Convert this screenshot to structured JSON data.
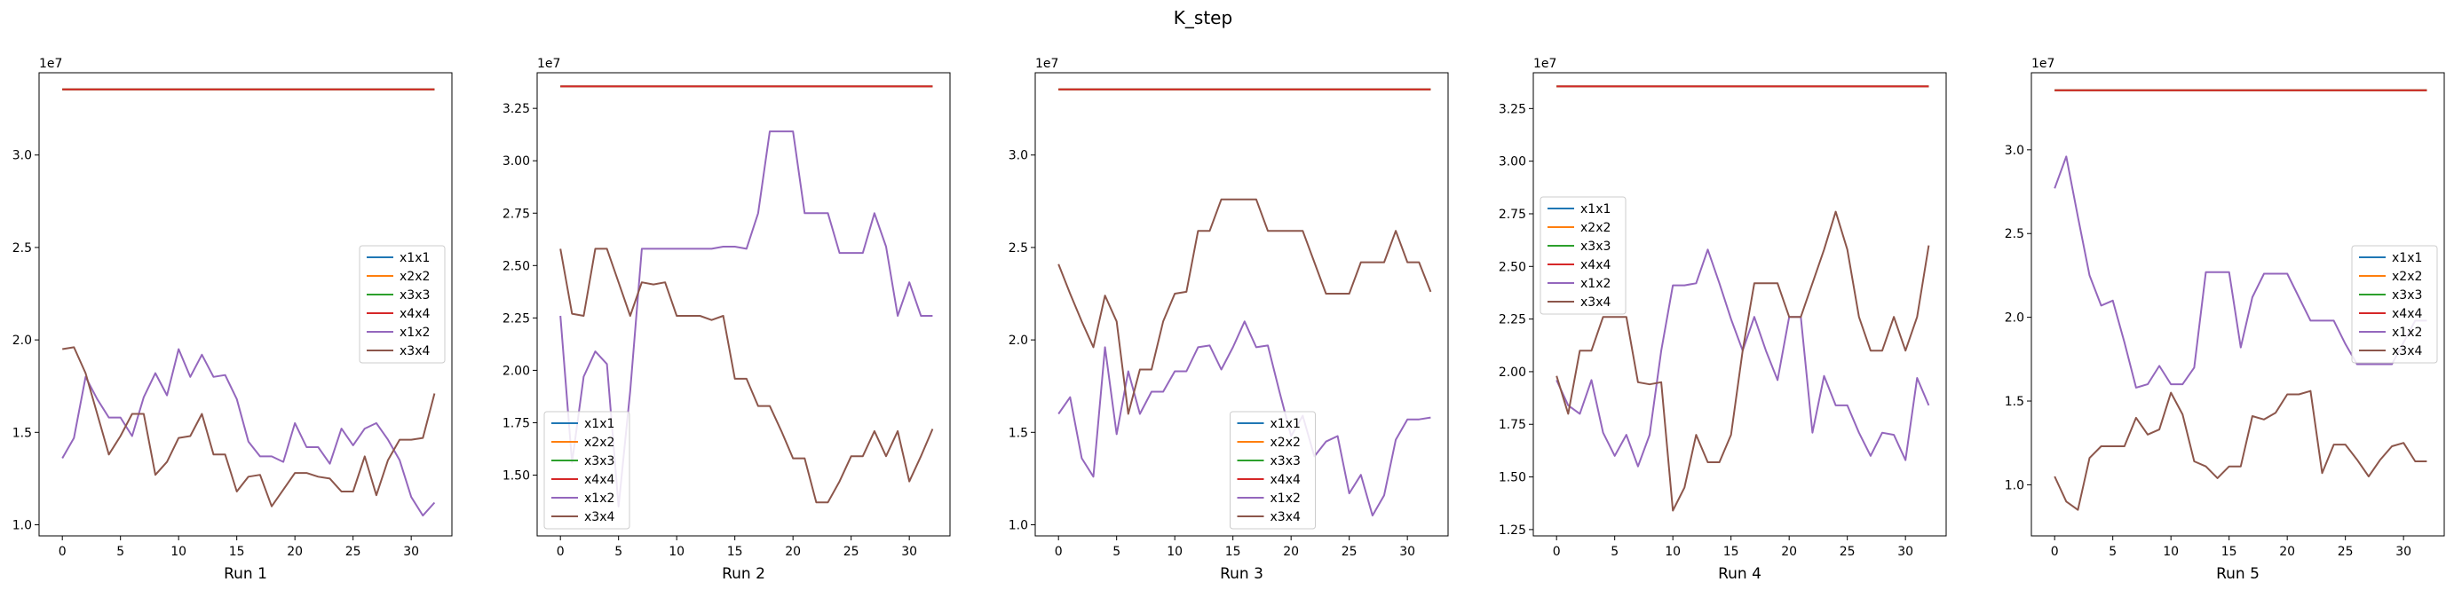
{
  "figure": {
    "suptitle": "K_step"
  },
  "chart_data": [
    {
      "type": "line",
      "xlabel": "Run 1",
      "exponent_label": "1e7",
      "xlim": [
        -2,
        33.5
      ],
      "ylim": [
        0.94,
        3.445
      ],
      "xticks": [
        0,
        5,
        10,
        15,
        20,
        25,
        30
      ],
      "yticks": [
        1.0,
        1.5,
        2.0,
        2.5,
        3.0
      ],
      "ytick_labels": [
        "1.0",
        "1.5",
        "2.0",
        "2.5",
        "3.0"
      ],
      "legend_position": "center-right",
      "series": [
        {
          "name": "x1x1",
          "color": "#1f77b4",
          "constant": 3.355,
          "x_range": [
            0,
            32
          ]
        },
        {
          "name": "x2x2",
          "color": "#ff7f0e",
          "constant": 3.355,
          "x_range": [
            0,
            32
          ]
        },
        {
          "name": "x3x3",
          "color": "#2ca02c",
          "constant": 3.355,
          "x_range": [
            0,
            32
          ]
        },
        {
          "name": "x4x4",
          "color": "#d62728",
          "constant": 3.355,
          "x_range": [
            0,
            32
          ]
        },
        {
          "name": "x1x2",
          "color": "#9467bd",
          "values": [
            1.36,
            1.47,
            1.8,
            1.68,
            1.58,
            1.58,
            1.48,
            1.69,
            1.82,
            1.7,
            1.95,
            1.8,
            1.92,
            1.8,
            1.81,
            1.68,
            1.45,
            1.37,
            1.37,
            1.34,
            1.55,
            1.42,
            1.42,
            1.33,
            1.52,
            1.43,
            1.52,
            1.55,
            1.46,
            1.35,
            1.15,
            1.05,
            1.12
          ]
        },
        {
          "name": "x3x4",
          "color": "#8c564b",
          "values": [
            1.95,
            1.96,
            1.82,
            1.6,
            1.38,
            1.48,
            1.6,
            1.6,
            1.27,
            1.34,
            1.47,
            1.48,
            1.6,
            1.38,
            1.38,
            1.18,
            1.26,
            1.27,
            1.1,
            1.19,
            1.28,
            1.28,
            1.26,
            1.25,
            1.18,
            1.18,
            1.37,
            1.16,
            1.35,
            1.46,
            1.46,
            1.47,
            1.71
          ]
        }
      ]
    },
    {
      "type": "line",
      "xlabel": "Run 2",
      "exponent_label": "1e7",
      "xlim": [
        -2,
        33.5
      ],
      "ylim": [
        1.21,
        3.42
      ],
      "xticks": [
        0,
        5,
        10,
        15,
        20,
        25,
        30
      ],
      "yticks": [
        1.5,
        1.75,
        2.0,
        2.25,
        2.5,
        2.75,
        3.0,
        3.25
      ],
      "ytick_labels": [
        "1.50",
        "1.75",
        "2.00",
        "2.25",
        "2.50",
        "2.75",
        "3.00",
        "3.25"
      ],
      "legend_position": "lower-left",
      "series": [
        {
          "name": "x1x1",
          "color": "#1f77b4",
          "constant": 3.355,
          "x_range": [
            0,
            32
          ]
        },
        {
          "name": "x2x2",
          "color": "#ff7f0e",
          "constant": 3.355,
          "x_range": [
            0,
            32
          ]
        },
        {
          "name": "x3x3",
          "color": "#2ca02c",
          "constant": 3.355,
          "x_range": [
            0,
            32
          ]
        },
        {
          "name": "x4x4",
          "color": "#d62728",
          "constant": 3.355,
          "x_range": [
            0,
            32
          ]
        },
        {
          "name": "x1x2",
          "color": "#9467bd",
          "values": [
            2.26,
            1.56,
            1.97,
            2.09,
            2.03,
            1.35,
            1.9,
            2.58,
            2.58,
            2.58,
            2.58,
            2.58,
            2.58,
            2.58,
            2.59,
            2.59,
            2.58,
            2.75,
            3.14,
            3.14,
            3.14,
            2.75,
            2.75,
            2.75,
            2.56,
            2.56,
            2.56,
            2.75,
            2.59,
            2.26,
            2.42,
            2.26,
            2.26
          ]
        },
        {
          "name": "x3x4",
          "color": "#8c564b",
          "values": [
            2.58,
            2.27,
            2.26,
            2.58,
            2.58,
            2.42,
            2.26,
            2.42,
            2.41,
            2.42,
            2.26,
            2.26,
            2.26,
            2.24,
            2.26,
            1.96,
            1.96,
            1.83,
            1.83,
            1.71,
            1.58,
            1.58,
            1.37,
            1.37,
            1.47,
            1.59,
            1.59,
            1.71,
            1.59,
            1.71,
            1.47,
            1.59,
            1.72
          ]
        }
      ]
    },
    {
      "type": "line",
      "xlabel": "Run 3",
      "exponent_label": "1e7",
      "xlim": [
        -2,
        33.5
      ],
      "ylim": [
        0.94,
        3.445
      ],
      "xticks": [
        0,
        5,
        10,
        15,
        20,
        25,
        30
      ],
      "yticks": [
        1.0,
        1.5,
        2.0,
        2.5,
        3.0
      ],
      "ytick_labels": [
        "1.0",
        "1.5",
        "2.0",
        "2.5",
        "3.0"
      ],
      "legend_position": "lower-center",
      "series": [
        {
          "name": "x1x1",
          "color": "#1f77b4",
          "constant": 3.355,
          "x_range": [
            0,
            32
          ]
        },
        {
          "name": "x2x2",
          "color": "#ff7f0e",
          "constant": 3.355,
          "x_range": [
            0,
            32
          ]
        },
        {
          "name": "x3x3",
          "color": "#2ca02c",
          "constant": 3.355,
          "x_range": [
            0,
            32
          ]
        },
        {
          "name": "x4x4",
          "color": "#d62728",
          "constant": 3.355,
          "x_range": [
            0,
            32
          ]
        },
        {
          "name": "x1x2",
          "color": "#9467bd",
          "values": [
            1.6,
            1.69,
            1.36,
            1.26,
            1.96,
            1.49,
            1.83,
            1.6,
            1.72,
            1.72,
            1.83,
            1.83,
            1.96,
            1.97,
            1.84,
            1.96,
            2.1,
            1.96,
            1.97,
            1.72,
            1.48,
            1.59,
            1.37,
            1.45,
            1.48,
            1.17,
            1.27,
            1.05,
            1.16,
            1.46,
            1.57,
            1.57,
            1.58
          ]
        },
        {
          "name": "x3x4",
          "color": "#8c564b",
          "values": [
            2.41,
            2.25,
            2.1,
            1.96,
            2.24,
            2.1,
            1.6,
            1.84,
            1.84,
            2.1,
            2.25,
            2.26,
            2.59,
            2.59,
            2.76,
            2.76,
            2.76,
            2.76,
            2.59,
            2.59,
            2.59,
            2.59,
            2.42,
            2.25,
            2.25,
            2.25,
            2.42,
            2.42,
            2.42,
            2.59,
            2.42,
            2.42,
            2.26
          ]
        }
      ]
    },
    {
      "type": "line",
      "xlabel": "Run 4",
      "exponent_label": "1e7",
      "xlim": [
        -2,
        33.5
      ],
      "ylim": [
        1.22,
        3.42
      ],
      "xticks": [
        0,
        5,
        10,
        15,
        20,
        25,
        30
      ],
      "yticks": [
        1.25,
        1.5,
        1.75,
        2.0,
        2.25,
        2.5,
        2.75,
        3.0,
        3.25
      ],
      "ytick_labels": [
        "1.25",
        "1.50",
        "1.75",
        "2.00",
        "2.25",
        "2.50",
        "2.75",
        "3.00",
        "3.25"
      ],
      "legend_position": "upper-left",
      "series": [
        {
          "name": "x1x1",
          "color": "#1f77b4",
          "constant": 3.355,
          "x_range": [
            0,
            32
          ]
        },
        {
          "name": "x2x2",
          "color": "#ff7f0e",
          "constant": 3.355,
          "x_range": [
            0,
            32
          ]
        },
        {
          "name": "x3x3",
          "color": "#2ca02c",
          "constant": 3.355,
          "x_range": [
            0,
            32
          ]
        },
        {
          "name": "x4x4",
          "color": "#d62728",
          "constant": 3.355,
          "x_range": [
            0,
            32
          ]
        },
        {
          "name": "x1x2",
          "color": "#9467bd",
          "values": [
            1.96,
            1.84,
            1.8,
            1.96,
            1.71,
            1.6,
            1.7,
            1.55,
            1.7,
            2.1,
            2.41,
            2.41,
            2.42,
            2.58,
            2.42,
            2.25,
            2.1,
            2.26,
            2.1,
            1.96,
            2.26,
            2.26,
            1.71,
            1.98,
            1.84,
            1.84,
            1.71,
            1.6,
            1.71,
            1.7,
            1.58,
            1.97,
            1.84
          ]
        },
        {
          "name": "x3x4",
          "color": "#8c564b",
          "values": [
            1.98,
            1.8,
            2.1,
            2.1,
            2.26,
            2.26,
            2.26,
            1.95,
            1.94,
            1.95,
            1.34,
            1.45,
            1.7,
            1.57,
            1.57,
            1.7,
            2.1,
            2.42,
            2.42,
            2.42,
            2.26,
            2.26,
            2.42,
            2.58,
            2.76,
            2.58,
            2.26,
            2.1,
            2.1,
            2.26,
            2.1,
            2.26,
            2.6
          ]
        }
      ]
    },
    {
      "type": "line",
      "xlabel": "Run 5",
      "exponent_label": "1e7",
      "xlim": [
        -2,
        33.5
      ],
      "ylim": [
        0.695,
        3.46
      ],
      "xticks": [
        0,
        5,
        10,
        15,
        20,
        25,
        30
      ],
      "yticks": [
        1.0,
        1.5,
        2.0,
        2.5,
        3.0
      ],
      "ytick_labels": [
        "1.0",
        "1.5",
        "2.0",
        "2.5",
        "3.0"
      ],
      "legend_position": "center-right",
      "series": [
        {
          "name": "x1x1",
          "color": "#1f77b4",
          "constant": 3.355,
          "x_range": [
            0,
            32
          ]
        },
        {
          "name": "x2x2",
          "color": "#ff7f0e",
          "constant": 3.355,
          "x_range": [
            0,
            32
          ]
        },
        {
          "name": "x3x3",
          "color": "#2ca02c",
          "constant": 3.355,
          "x_range": [
            0,
            32
          ]
        },
        {
          "name": "x4x4",
          "color": "#d62728",
          "constant": 3.355,
          "x_range": [
            0,
            32
          ]
        },
        {
          "name": "x1x2",
          "color": "#9467bd",
          "values": [
            2.77,
            2.96,
            2.6,
            2.25,
            2.07,
            2.1,
            1.85,
            1.58,
            1.6,
            1.71,
            1.6,
            1.6,
            1.7,
            2.27,
            2.27,
            2.27,
            1.82,
            2.12,
            2.26,
            2.26,
            2.26,
            2.12,
            1.98,
            1.98,
            1.98,
            1.84,
            1.72,
            1.72,
            1.72,
            1.72,
            1.85,
            1.98,
            1.98
          ]
        },
        {
          "name": "x3x4",
          "color": "#8c564b",
          "values": [
            1.05,
            0.9,
            0.85,
            1.16,
            1.23,
            1.23,
            1.23,
            1.4,
            1.3,
            1.33,
            1.55,
            1.42,
            1.14,
            1.11,
            1.04,
            1.11,
            1.11,
            1.41,
            1.39,
            1.43,
            1.54,
            1.54,
            1.56,
            1.07,
            1.24,
            1.24,
            1.15,
            1.05,
            1.15,
            1.23,
            1.25,
            1.14,
            1.14
          ]
        }
      ]
    }
  ]
}
